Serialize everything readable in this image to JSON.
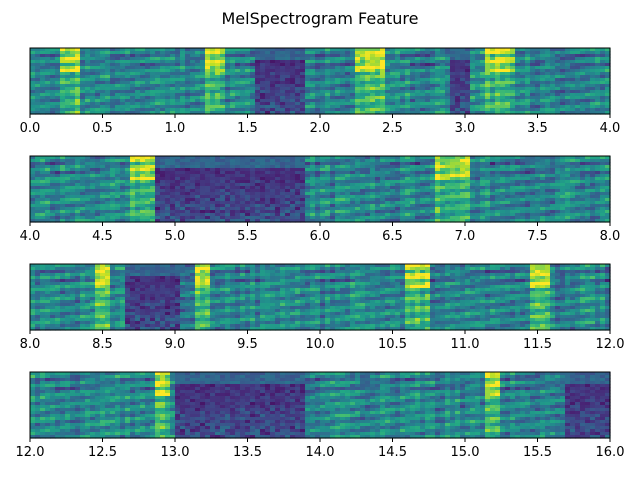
{
  "title": "MelSpectrogram Feature",
  "colormap": "viridis",
  "chart_data": [
    {
      "type": "heatmap",
      "xlim": [
        0.0,
        4.0
      ],
      "x_ticks": [
        "0.0",
        "0.5",
        "1.0",
        "1.5",
        "2.0",
        "2.5",
        "3.0",
        "3.5",
        "4.0"
      ],
      "y_ticks": [],
      "dark_regions": [
        [
          1.55,
          1.9
        ],
        [
          2.9,
          3.05
        ]
      ],
      "bright_regions": [
        [
          0.2,
          0.35
        ],
        [
          1.2,
          1.35
        ],
        [
          2.25,
          2.45
        ],
        [
          3.15,
          3.35
        ]
      ]
    },
    {
      "type": "heatmap",
      "xlim": [
        4.0,
        8.0
      ],
      "x_ticks": [
        "4.0",
        "4.5",
        "5.0",
        "5.5",
        "6.0",
        "6.5",
        "7.0",
        "7.5",
        "8.0"
      ],
      "y_ticks": [],
      "dark_regions": [
        [
          4.85,
          5.9
        ]
      ],
      "bright_regions": [
        [
          4.7,
          4.85
        ],
        [
          6.8,
          7.05
        ]
      ]
    },
    {
      "type": "heatmap",
      "xlim": [
        8.0,
        12.0
      ],
      "x_ticks": [
        "8.0",
        "8.5",
        "9.0",
        "9.5",
        "10.0",
        "10.5",
        "11.0",
        "11.5",
        "12.0"
      ],
      "y_ticks": [],
      "dark_regions": [
        [
          8.65,
          9.05
        ]
      ],
      "bright_regions": [
        [
          8.45,
          8.55
        ],
        [
          9.15,
          9.25
        ],
        [
          10.6,
          10.75
        ],
        [
          11.45,
          11.6
        ]
      ]
    },
    {
      "type": "heatmap",
      "xlim": [
        12.0,
        16.0
      ],
      "x_ticks": [
        "12.0",
        "12.5",
        "13.0",
        "13.5",
        "14.0",
        "14.5",
        "15.0",
        "15.5",
        "16.0"
      ],
      "y_ticks": [],
      "dark_regions": [
        [
          13.0,
          13.9
        ],
        [
          15.7,
          16.0
        ]
      ],
      "bright_regions": [
        [
          12.85,
          12.95
        ],
        [
          15.15,
          15.25
        ]
      ]
    }
  ]
}
